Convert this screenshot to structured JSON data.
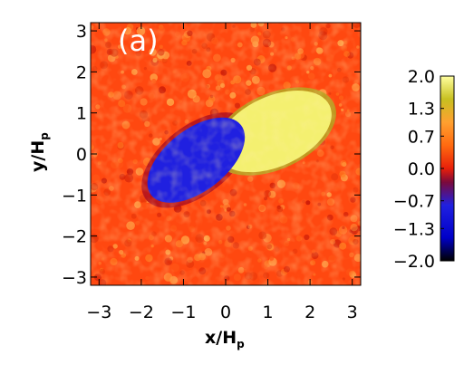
{
  "chart_data": {
    "type": "heatmap",
    "panel_label": "(a)",
    "xlabel": "x/H",
    "xlabel_sub": "p",
    "ylabel": "y/H",
    "ylabel_sub": "p",
    "xlim": [
      -3.2,
      3.2
    ],
    "ylim": [
      -3.2,
      3.2
    ],
    "x_ticks": [
      -3,
      -2,
      -1,
      0,
      1,
      2,
      3
    ],
    "y_ticks": [
      -3,
      -2,
      -1,
      0,
      1,
      2,
      3
    ],
    "x_tick_labels": [
      "−3",
      "−2",
      "−1",
      "0",
      "1",
      "2",
      "3"
    ],
    "y_tick_labels": [
      "−3",
      "−2",
      "−1",
      "0",
      "1",
      "2",
      "3"
    ],
    "colorbar": {
      "range": [
        -2.0,
        2.0
      ],
      "ticks": [
        2.0,
        1.3,
        0.7,
        0.0,
        -0.7,
        -1.3,
        -2.0
      ],
      "tick_labels": [
        "2.0",
        "1.3",
        "0.7",
        "0.0",
        "−0.7",
        "−1.3",
        "−2.0"
      ],
      "stops": [
        {
          "v": -2.0,
          "color": "#000000"
        },
        {
          "v": -1.5,
          "color": "#0000c8"
        },
        {
          "v": -0.8,
          "color": "#2020e0"
        },
        {
          "v": -0.3,
          "color": "#7a0a3c"
        },
        {
          "v": 0.0,
          "color": "#e8200a"
        },
        {
          "v": 0.5,
          "color": "#ff6a10"
        },
        {
          "v": 1.0,
          "color": "#ffa030"
        },
        {
          "v": 1.5,
          "color": "#c8c020"
        },
        {
          "v": 2.0,
          "color": "#ffffa0"
        }
      ]
    },
    "features": {
      "background_value": 0.3,
      "negative_region": {
        "center": [
          -0.7,
          -0.15
        ],
        "semi_axes": [
          1.35,
          0.75
        ],
        "angle_deg": 38,
        "value": -1.1
      },
      "positive_region": {
        "center": [
          1.15,
          0.55
        ],
        "semi_axes": [
          1.45,
          0.85
        ],
        "angle_deg": 25,
        "value": 1.7
      },
      "interface_value": 1.5
    }
  }
}
